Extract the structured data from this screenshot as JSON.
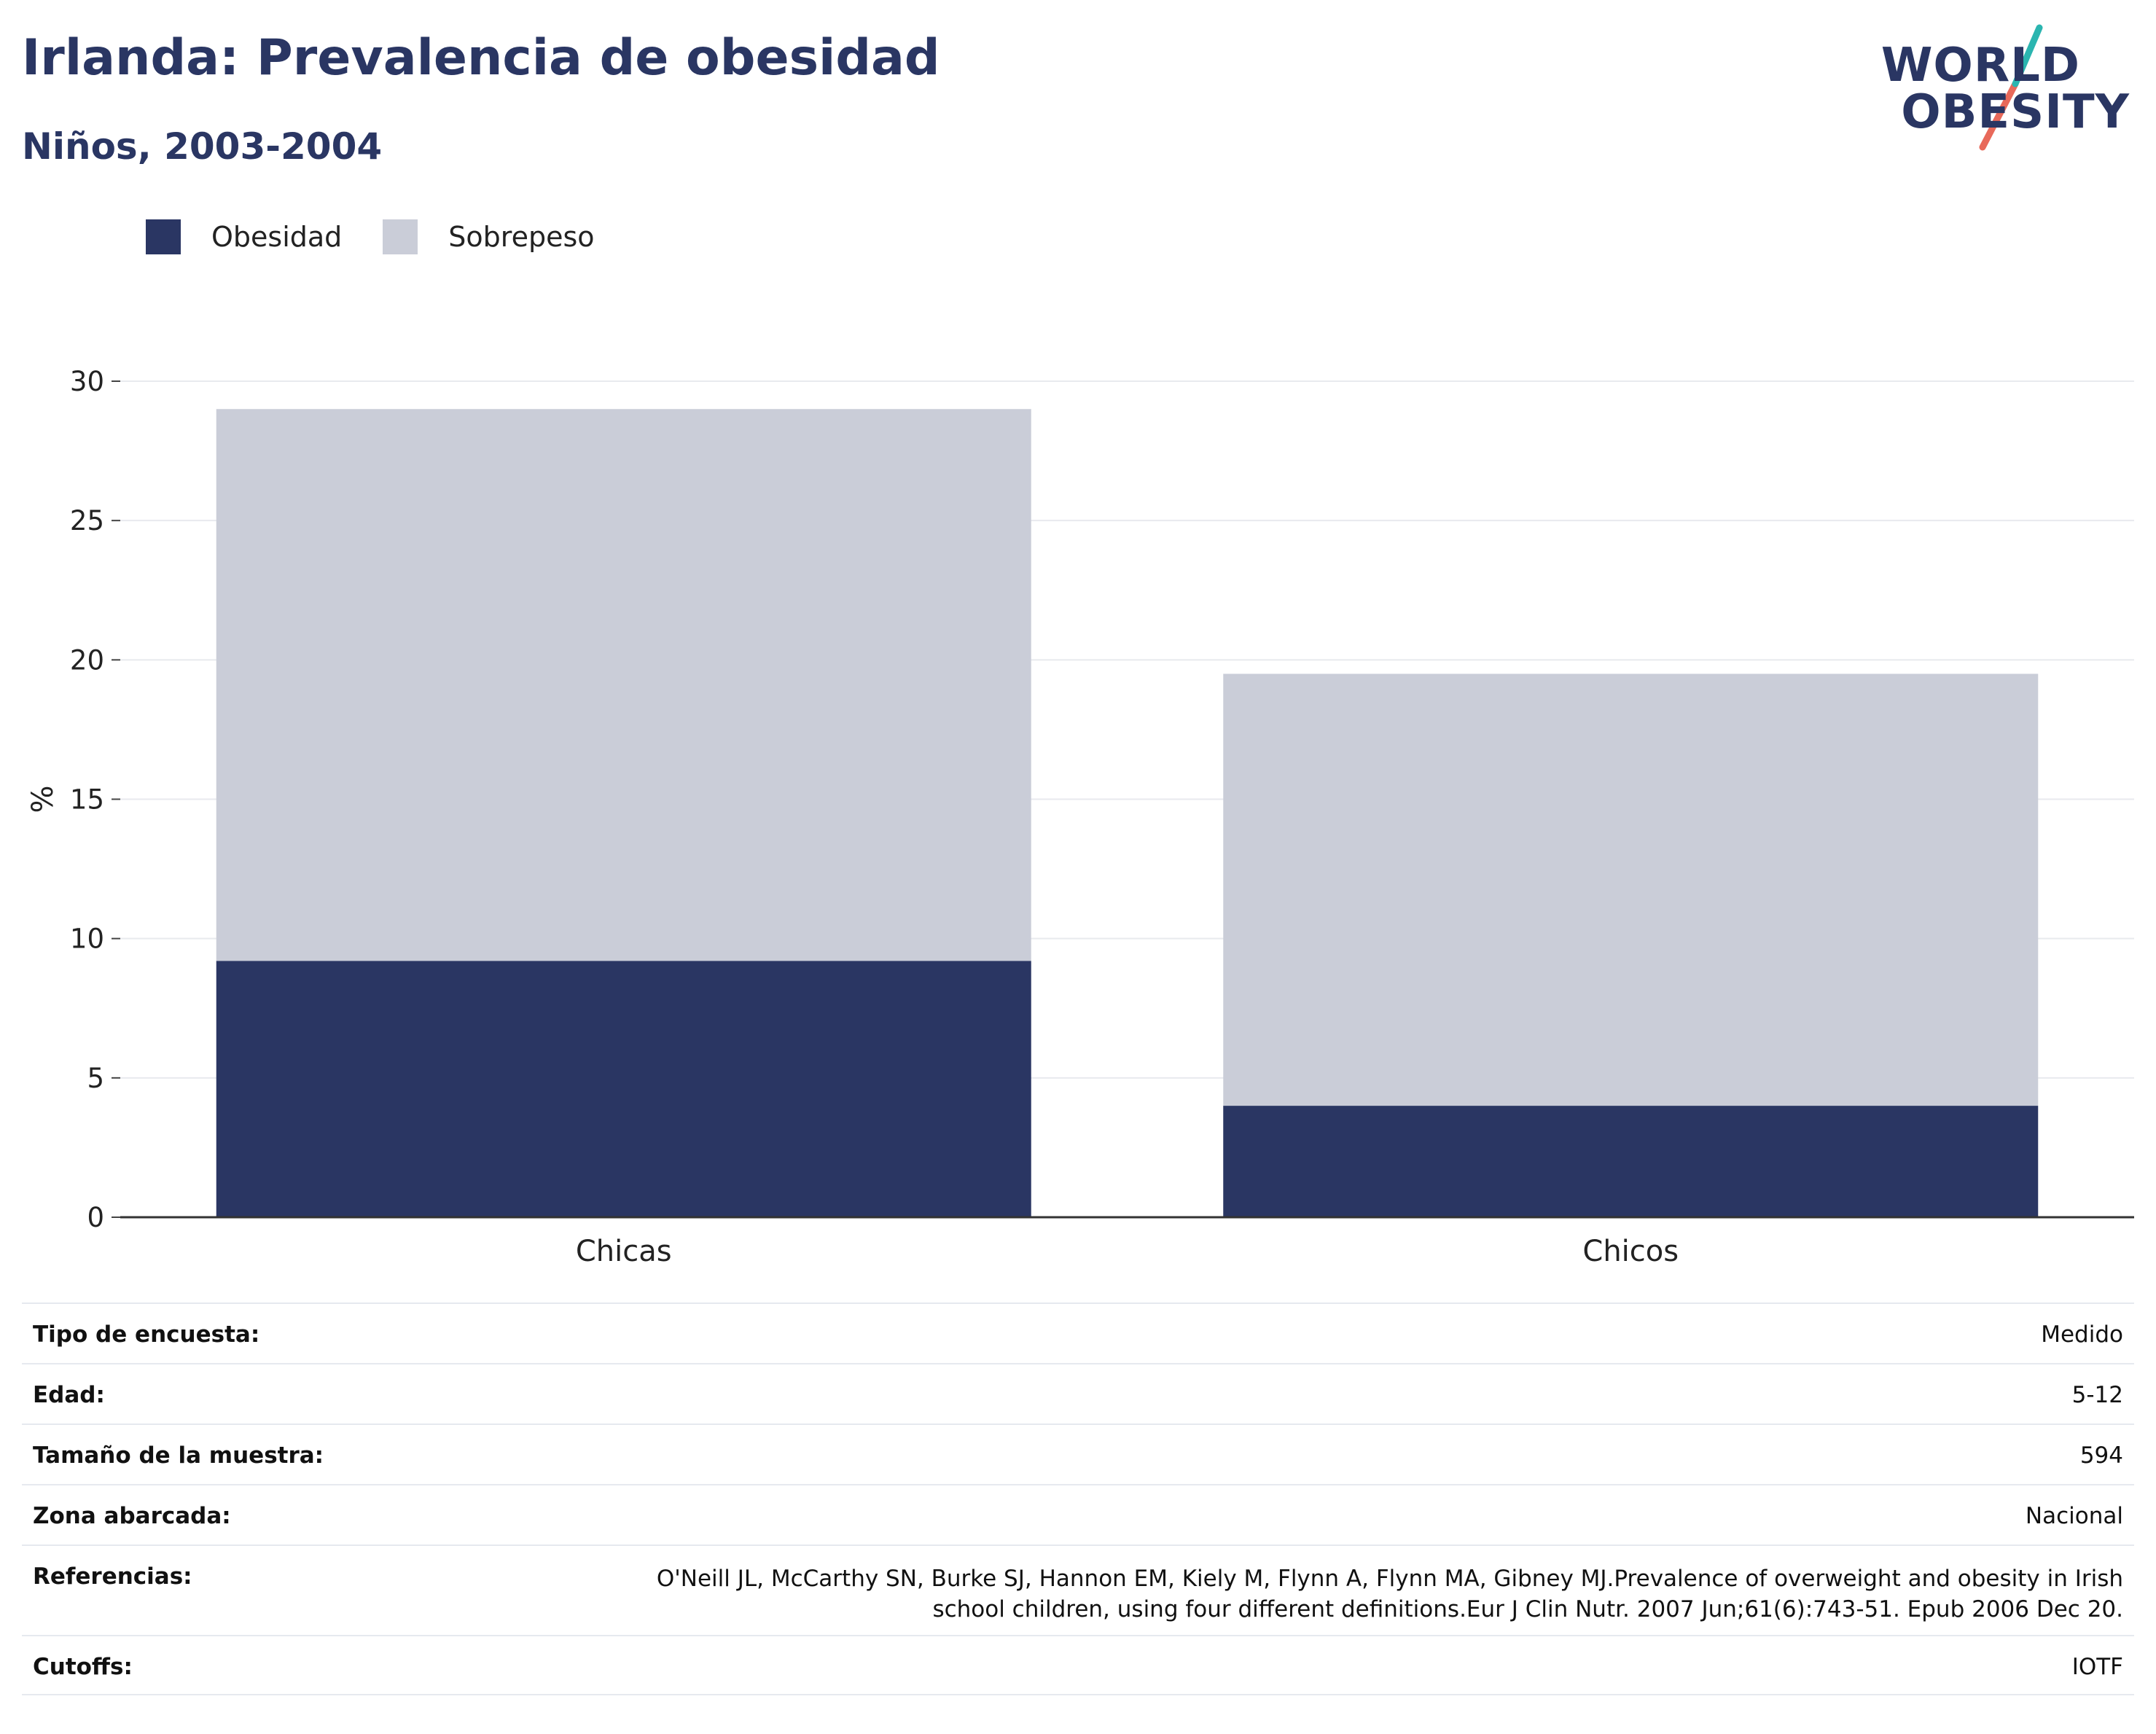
{
  "header": {
    "title": "Irlanda: Prevalencia de obesidad",
    "subtitle": "Niños, 2003-2004"
  },
  "logo": {
    "line1": "WORLD",
    "line2": "OBESITY",
    "colors": {
      "navy": "#2a3663",
      "teal": "#2bb5b0",
      "coral": "#e8695a"
    }
  },
  "legend": [
    {
      "label": "Obesidad",
      "color": "#2a3663"
    },
    {
      "label": "Sobrepeso",
      "color": "#cacdd8"
    }
  ],
  "chart_data": {
    "type": "bar",
    "stacked": true,
    "categories": [
      "Chicas",
      "Chicos"
    ],
    "series": [
      {
        "name": "Obesidad",
        "values": [
          9.2,
          4.0
        ],
        "color": "#2a3663"
      },
      {
        "name": "Sobrepeso",
        "values": [
          19.8,
          15.5
        ],
        "color": "#cacdd8"
      }
    ],
    "ylabel": "%",
    "xlabel": "",
    "ylim": [
      0,
      30
    ],
    "yticks": [
      0,
      5,
      10,
      15,
      20,
      25,
      30
    ],
    "grid": true,
    "legend_position": "top-left"
  },
  "info_table": [
    {
      "key": "Tipo de encuesta:",
      "value": "Medido"
    },
    {
      "key": "Edad:",
      "value": "5-12"
    },
    {
      "key": "Tamaño de la muestra:",
      "value": "594"
    },
    {
      "key": "Zona abarcada:",
      "value": "Nacional"
    },
    {
      "key": "Referencias:",
      "value": "O'Neill JL, McCarthy SN, Burke SJ, Hannon EM, Kiely M, Flynn A, Flynn MA, Gibney MJ.Prevalence of overweight and obesity in Irish school children, using four different definitions.Eur J Clin Nutr. 2007 Jun;61(6):743-51. Epub 2006 Dec 20."
    },
    {
      "key": "Cutoffs:",
      "value": "IOTF"
    }
  ]
}
